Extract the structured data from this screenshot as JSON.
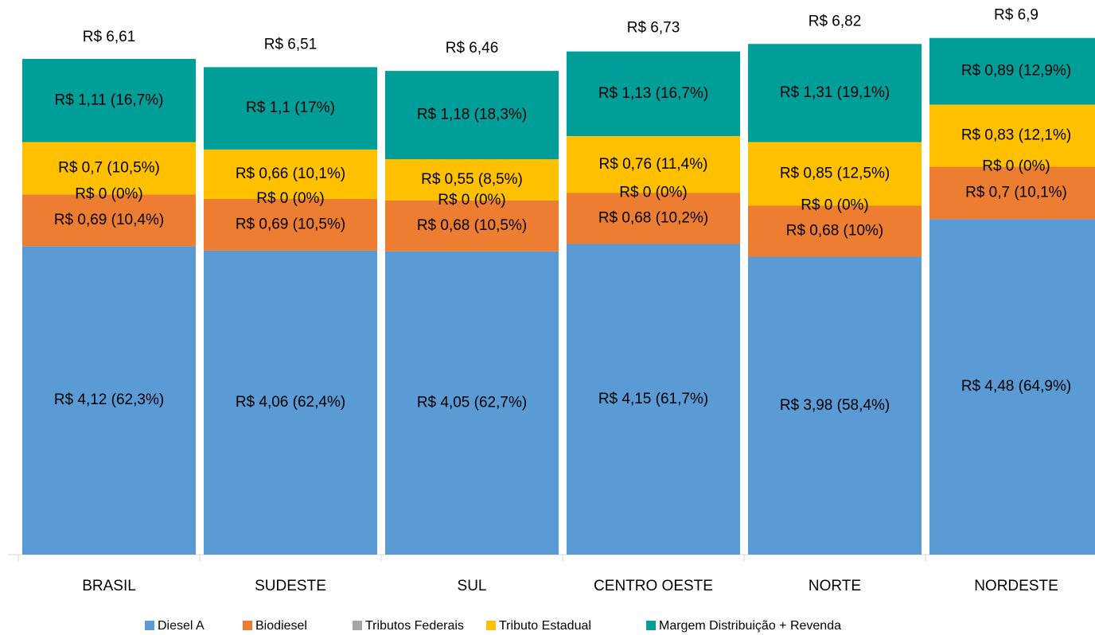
{
  "chart_data": {
    "type": "stacked-bar",
    "categories": [
      "BRASIL",
      "SUDESTE",
      "SUL",
      "CENTRO OESTE",
      "NORTE",
      "NORDESTE"
    ],
    "series": [
      {
        "name": "Diesel A",
        "color": "#5b9bd5",
        "values": [
          4.12,
          4.06,
          4.05,
          4.15,
          3.98,
          4.48
        ],
        "value_labels": [
          "R$ 4,12 (62,3%)",
          "R$ 4,06 (62,4%)",
          "R$ 4,05 (62,7%)",
          "R$ 4,15 (61,7%)",
          "R$ 3,98 (58,4%)",
          "R$ 4,48 (64,9%)"
        ]
      },
      {
        "name": "Biodiesel",
        "color": "#ed7d31",
        "values": [
          0.69,
          0.69,
          0.68,
          0.68,
          0.68,
          0.7
        ],
        "value_labels": [
          "R$ 0,69 (10,4%)",
          "R$ 0,69 (10,5%)",
          "R$ 0,68 (10,5%)",
          "R$ 0,68 (10,2%)",
          "R$ 0,68 (10%)",
          "R$ 0,7 (10,1%)"
        ]
      },
      {
        "name": "Tributos Federais",
        "color": "#a5a5a5",
        "values": [
          0,
          0,
          0,
          0,
          0,
          0
        ],
        "value_labels": [
          "R$ 0 (0%)",
          "R$ 0 (0%)",
          "R$ 0 (0%)",
          "R$ 0 (0%)",
          "R$ 0 (0%)",
          "R$ 0 (0%)"
        ]
      },
      {
        "name": "Tributo Estadual",
        "color": "#ffc000",
        "values": [
          0.7,
          0.66,
          0.55,
          0.76,
          0.85,
          0.83
        ],
        "value_labels": [
          "R$ 0,7 (10,5%)",
          "R$ 0,66 (10,1%)",
          "R$ 0,55 (8,5%)",
          "R$ 0,76 (11,4%)",
          "R$ 0,85 (12,5%)",
          "R$ 0,83 (12,1%)"
        ]
      },
      {
        "name": "Margem Distribuição + Revenda",
        "color": "#009e99",
        "values": [
          1.11,
          1.1,
          1.18,
          1.13,
          1.31,
          0.89
        ],
        "value_labels": [
          "R$ 1,11 (16,7%)",
          "R$ 1,1 (17%)",
          "R$ 1,18 (18,3%)",
          "R$ 1,13 (16,7%)",
          "R$ 1,31 (19,1%)",
          "R$ 0,89 (12,9%)"
        ]
      }
    ],
    "totals": [
      6.61,
      6.51,
      6.46,
      6.73,
      6.82,
      6.9
    ],
    "total_labels": [
      "R$ 6,61",
      "R$ 6,51",
      "R$ 6,46",
      "R$ 6,73",
      "R$ 6,82",
      "R$ 6,9"
    ]
  }
}
